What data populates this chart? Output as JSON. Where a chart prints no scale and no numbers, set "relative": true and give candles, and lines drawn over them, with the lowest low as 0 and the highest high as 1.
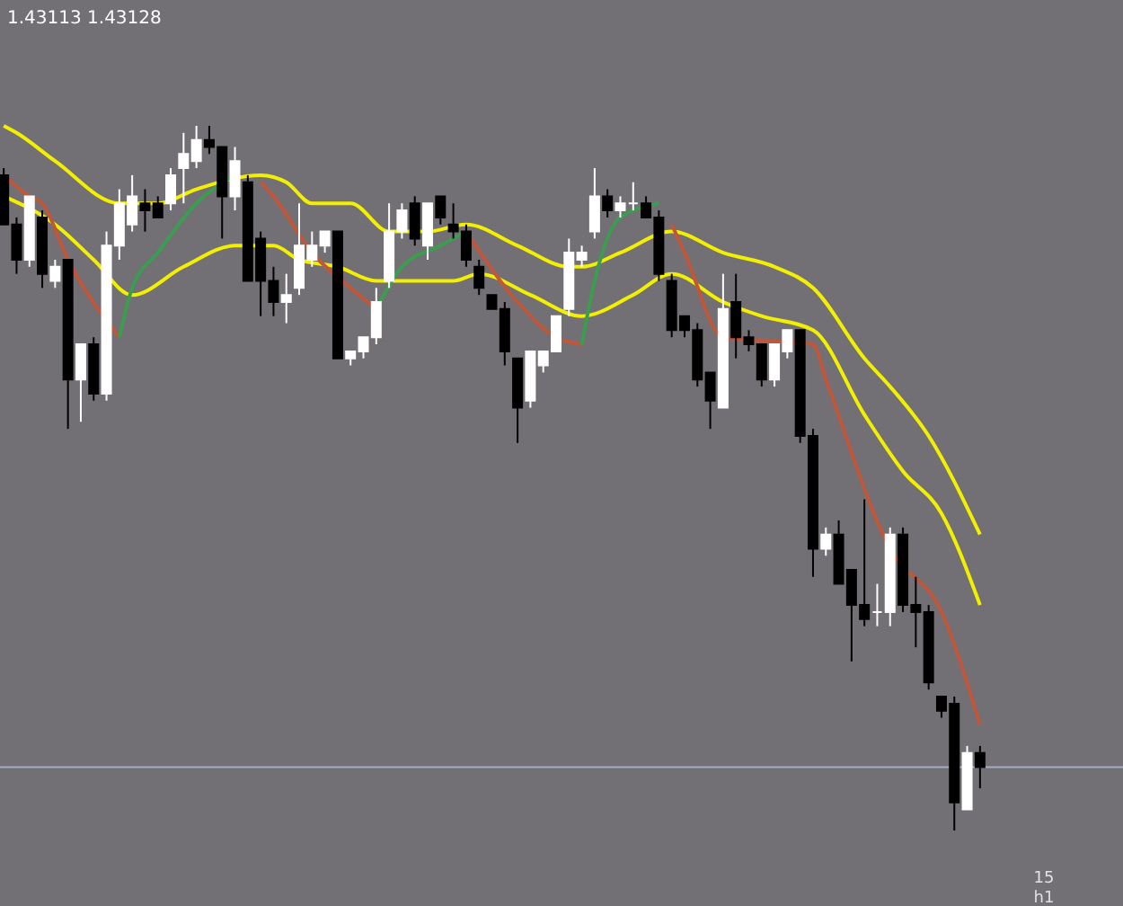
{
  "chart_data": {
    "type": "candlestick",
    "title": "1.43113 1.43128",
    "relative": true,
    "categories": [
      null,
      null,
      null,
      null,
      null,
      null,
      null,
      null,
      null,
      null,
      null,
      null,
      null,
      null,
      null,
      null,
      null,
      null,
      null,
      null,
      null,
      null,
      null,
      null,
      null,
      null,
      null,
      null,
      null,
      null,
      null,
      null,
      null,
      null,
      null,
      null,
      null,
      null,
      null,
      null,
      null,
      null,
      null,
      null,
      null,
      null,
      null,
      null,
      null,
      null,
      null,
      null,
      null,
      null,
      null,
      null,
      null,
      null,
      null,
      null,
      null,
      null,
      null,
      null,
      null,
      null,
      null,
      null,
      null,
      null,
      null,
      null,
      null,
      null,
      null,
      null,
      null
    ],
    "ohlc": [
      [
        0.93,
        0.94,
        0.86,
        0.86
      ],
      [
        0.86,
        0.87,
        0.79,
        0.81
      ],
      [
        0.81,
        0.9,
        0.8,
        0.9
      ],
      [
        0.87,
        0.88,
        0.77,
        0.79
      ],
      [
        0.78,
        0.81,
        0.77,
        0.8
      ],
      [
        0.81,
        0.81,
        0.57,
        0.64
      ],
      [
        0.64,
        0.69,
        0.58,
        0.69
      ],
      [
        0.69,
        0.7,
        0.61,
        0.62
      ],
      [
        0.62,
        0.85,
        0.61,
        0.83
      ],
      [
        0.83,
        0.91,
        0.81,
        0.89
      ],
      [
        0.86,
        0.93,
        0.85,
        0.9
      ],
      [
        0.89,
        0.91,
        0.85,
        0.88
      ],
      [
        0.89,
        0.9,
        0.87,
        0.87
      ],
      [
        0.89,
        0.94,
        0.88,
        0.93
      ],
      [
        0.94,
        0.99,
        0.89,
        0.96
      ],
      [
        0.95,
        1.0,
        0.94,
        0.98
      ],
      [
        0.98,
        1.0,
        0.96,
        0.97
      ],
      [
        0.97,
        0.97,
        0.84,
        0.9
      ],
      [
        0.9,
        0.97,
        0.88,
        0.95
      ],
      [
        0.92,
        0.93,
        0.78,
        0.78
      ],
      [
        0.84,
        0.85,
        0.73,
        0.78
      ],
      [
        0.78,
        0.8,
        0.73,
        0.75
      ],
      [
        0.75,
        0.79,
        0.72,
        0.76
      ],
      [
        0.77,
        0.89,
        0.76,
        0.83
      ],
      [
        0.81,
        0.85,
        0.8,
        0.83
      ],
      [
        0.83,
        0.85,
        0.82,
        0.85
      ],
      [
        0.85,
        0.85,
        0.67,
        0.67
      ],
      [
        0.67,
        0.68,
        0.66,
        0.68
      ],
      [
        0.68,
        0.7,
        0.67,
        0.7
      ],
      [
        0.7,
        0.77,
        0.69,
        0.75
      ],
      [
        0.78,
        0.89,
        0.77,
        0.85
      ],
      [
        0.85,
        0.89,
        0.84,
        0.88
      ],
      [
        0.89,
        0.9,
        0.83,
        0.84
      ],
      [
        0.83,
        0.89,
        0.81,
        0.89
      ],
      [
        0.9,
        0.9,
        0.86,
        0.87
      ],
      [
        0.86,
        0.89,
        0.84,
        0.85
      ],
      [
        0.85,
        0.86,
        0.8,
        0.81
      ],
      [
        0.8,
        0.81,
        0.76,
        0.77
      ],
      [
        0.76,
        0.76,
        0.74,
        0.74
      ],
      [
        0.74,
        0.75,
        0.66,
        0.68
      ],
      [
        0.67,
        0.67,
        0.55,
        0.6
      ],
      [
        0.61,
        0.68,
        0.6,
        0.68
      ],
      [
        0.66,
        0.68,
        0.65,
        0.68
      ],
      [
        0.68,
        0.73,
        0.68,
        0.73
      ],
      [
        0.74,
        0.84,
        0.73,
        0.82
      ],
      [
        0.81,
        0.83,
        0.8,
        0.82
      ],
      [
        0.85,
        0.94,
        0.84,
        0.9
      ],
      [
        0.9,
        0.91,
        0.87,
        0.88
      ],
      [
        0.88,
        0.9,
        0.87,
        0.89
      ],
      [
        0.89,
        0.92,
        0.88,
        0.89
      ],
      [
        0.89,
        0.9,
        0.87,
        0.87
      ],
      [
        0.87,
        0.88,
        0.78,
        0.79
      ],
      [
        0.78,
        0.79,
        0.7,
        0.71
      ],
      [
        0.73,
        0.73,
        0.7,
        0.71
      ],
      [
        0.71,
        0.72,
        0.63,
        0.64
      ],
      [
        0.65,
        0.65,
        0.57,
        0.61
      ],
      [
        0.6,
        0.79,
        0.6,
        0.74
      ],
      [
        0.75,
        0.79,
        0.67,
        0.7
      ],
      [
        0.7,
        0.71,
        0.68,
        0.69
      ],
      [
        0.69,
        0.69,
        0.63,
        0.64
      ],
      [
        0.64,
        0.69,
        0.63,
        0.69
      ],
      [
        0.68,
        0.71,
        0.67,
        0.71
      ],
      [
        0.71,
        0.71,
        0.55,
        0.56
      ],
      [
        0.56,
        0.57,
        0.36,
        0.4
      ],
      [
        0.4,
        0.43,
        0.39,
        0.42
      ],
      [
        0.42,
        0.44,
        0.35,
        0.35
      ],
      [
        0.37,
        0.37,
        0.24,
        0.32
      ],
      [
        0.32,
        0.47,
        0.29,
        0.3
      ],
      [
        0.31,
        0.35,
        0.29,
        0.31
      ],
      [
        0.31,
        0.43,
        0.29,
        0.42
      ],
      [
        0.42,
        0.43,
        0.31,
        0.32
      ],
      [
        0.32,
        0.36,
        0.26,
        0.31
      ],
      [
        0.31,
        0.32,
        0.2,
        0.21
      ],
      [
        0.19,
        0.19,
        0.16,
        0.17
      ],
      [
        0.18,
        0.19,
        0.0,
        0.04
      ],
      [
        0.03,
        0.12,
        0.03,
        0.11
      ],
      [
        0.11,
        0.12,
        0.06,
        0.09
      ]
    ],
    "series": [
      {
        "type": "line",
        "color": "#f2f000",
        "values": [
          1.0,
          0.99,
          null,
          null,
          0.95,
          null,
          null,
          null,
          null,
          0.89,
          null,
          null,
          0.89,
          null,
          null,
          0.91,
          null,
          null,
          null,
          null,
          0.93,
          null,
          0.92,
          null,
          0.89,
          null,
          null,
          0.89,
          null,
          null,
          0.85,
          null,
          null,
          0.85,
          null,
          null,
          0.86,
          null,
          null,
          null,
          0.83,
          null,
          null,
          null,
          0.8,
          0.8,
          null,
          null,
          0.82,
          null,
          null,
          null,
          0.85,
          null,
          null,
          null,
          0.82,
          null,
          null,
          null,
          0.8,
          null,
          null,
          0.77,
          null,
          null,
          null,
          0.67,
          null,
          0.63,
          null,
          null,
          0.56,
          null,
          null,
          null,
          0.42
        ]
      },
      {
        "type": "line",
        "color": "#f2f000",
        "values": [
          0.9,
          null,
          null,
          null,
          0.86,
          null,
          null,
          0.81,
          null,
          null,
          0.76,
          null,
          null,
          null,
          0.8,
          null,
          null,
          null,
          0.83,
          null,
          null,
          0.83,
          null,
          0.81,
          null,
          null,
          0.8,
          null,
          null,
          0.78,
          null,
          null,
          null,
          null,
          null,
          0.78,
          null,
          0.79,
          null,
          null,
          null,
          0.76,
          null,
          null,
          null,
          0.73,
          null,
          null,
          null,
          0.76,
          null,
          null,
          0.79,
          null,
          null,
          null,
          0.75,
          null,
          null,
          0.73,
          null,
          null,
          null,
          0.71,
          null,
          null,
          null,
          0.59,
          null,
          null,
          0.51,
          null,
          null,
          0.45,
          null,
          null,
          0.32
        ]
      },
      {
        "type": "line",
        "color": "#c0563a",
        "values": [
          0.93,
          null,
          0.9,
          0.89,
          null,
          0.81,
          null,
          null,
          null,
          0.7,
          null,
          null,
          null,
          null,
          null,
          null,
          null,
          null,
          null,
          null,
          null,
          null,
          null,
          null,
          null,
          null,
          null,
          null,
          null,
          null,
          null,
          null,
          null,
          null,
          null,
          null,
          null,
          null,
          null,
          null,
          null,
          null,
          null,
          null,
          null,
          null,
          null,
          null,
          null,
          null,
          null,
          null,
          null,
          null,
          null,
          null,
          null,
          null,
          null,
          null,
          null,
          null,
          null,
          null,
          null,
          null,
          null,
          null,
          null,
          null,
          null,
          null,
          null,
          null,
          null,
          null,
          null
        ]
      },
      {
        "type": "line",
        "color": "#3c9c50",
        "values": [
          null,
          null,
          null,
          null,
          null,
          null,
          null,
          null,
          null,
          0.7,
          0.77,
          null,
          0.82,
          null,
          null,
          0.89,
          null,
          null,
          0.93,
          null,
          null,
          null,
          null,
          null,
          null,
          null,
          null,
          null,
          null,
          null,
          null,
          null,
          null,
          null,
          null,
          null,
          null,
          null,
          null,
          null,
          null,
          null,
          null,
          null,
          null,
          null,
          null,
          null,
          null,
          null,
          null,
          null,
          null,
          null,
          null,
          null,
          null,
          null,
          null,
          null,
          null,
          null,
          null,
          null,
          null,
          null,
          null,
          null,
          null,
          null,
          null,
          null,
          null,
          null,
          null,
          null,
          null
        ]
      },
      {
        "type": "line",
        "color": "#c0563a",
        "values": [
          null,
          null,
          null,
          null,
          null,
          null,
          null,
          null,
          null,
          null,
          null,
          null,
          null,
          null,
          null,
          null,
          null,
          null,
          null,
          null,
          0.92,
          0.9,
          null,
          null,
          0.82,
          null,
          null,
          0.77,
          null,
          0.74,
          null,
          null,
          null,
          null,
          null,
          null,
          null,
          null,
          null,
          null,
          null,
          null,
          null,
          null,
          null,
          null,
          null,
          null,
          null,
          null,
          null,
          null,
          null,
          null,
          null,
          null,
          null,
          null,
          null,
          null,
          null,
          null,
          null,
          null,
          null,
          null,
          null,
          null,
          null,
          null,
          null,
          null,
          null,
          null,
          null,
          null,
          null
        ]
      },
      {
        "type": "line",
        "color": "#3c9c50",
        "values": [
          null,
          null,
          null,
          null,
          null,
          null,
          null,
          null,
          null,
          null,
          null,
          null,
          null,
          null,
          null,
          null,
          null,
          null,
          null,
          null,
          null,
          null,
          null,
          null,
          null,
          null,
          null,
          null,
          null,
          0.74,
          null,
          0.8,
          null,
          null,
          0.83,
          null,
          0.85,
          null,
          null,
          null,
          null,
          null,
          null,
          null,
          null,
          null,
          null,
          null,
          null,
          null,
          null,
          null,
          null,
          null,
          null,
          null,
          null,
          null,
          null,
          null,
          null,
          null,
          null,
          null,
          null,
          null,
          null,
          null,
          null,
          null,
          null,
          null,
          null,
          null,
          null,
          null,
          null
        ]
      },
      {
        "type": "line",
        "color": "#c0563a",
        "values": [
          null,
          null,
          null,
          null,
          null,
          null,
          null,
          null,
          null,
          null,
          null,
          null,
          null,
          null,
          null,
          null,
          null,
          null,
          null,
          null,
          null,
          null,
          null,
          null,
          null,
          null,
          null,
          null,
          null,
          null,
          null,
          null,
          null,
          null,
          null,
          null,
          0.85,
          null,
          null,
          null,
          0.75,
          null,
          null,
          0.7,
          null,
          0.69,
          null,
          null,
          null,
          null,
          null,
          null,
          null,
          null,
          null,
          null,
          null,
          null,
          null,
          null,
          null,
          null,
          null,
          null,
          null,
          null,
          null,
          null,
          null,
          null,
          null,
          null,
          null,
          null,
          null,
          null,
          null
        ]
      },
      {
        "type": "line",
        "color": "#3c9c50",
        "values": [
          null,
          null,
          null,
          null,
          null,
          null,
          null,
          null,
          null,
          null,
          null,
          null,
          null,
          null,
          null,
          null,
          null,
          null,
          null,
          null,
          null,
          null,
          null,
          null,
          null,
          null,
          null,
          null,
          null,
          null,
          null,
          null,
          null,
          null,
          null,
          null,
          null,
          null,
          null,
          null,
          null,
          null,
          null,
          null,
          null,
          0.69,
          0.78,
          null,
          0.87,
          null,
          null,
          0.89,
          null,
          null,
          null,
          null,
          null,
          null,
          null,
          null,
          null,
          null,
          null,
          null,
          null,
          null,
          null,
          null,
          null,
          null,
          null,
          null,
          null,
          null,
          null,
          null,
          null
        ]
      },
      {
        "type": "line",
        "color": "#c0563a",
        "values": [
          null,
          null,
          null,
          null,
          null,
          null,
          null,
          null,
          null,
          null,
          null,
          null,
          null,
          null,
          null,
          null,
          null,
          null,
          null,
          null,
          null,
          null,
          null,
          null,
          null,
          null,
          null,
          null,
          null,
          null,
          null,
          null,
          null,
          null,
          null,
          null,
          null,
          null,
          null,
          null,
          null,
          null,
          null,
          null,
          null,
          null,
          null,
          null,
          null,
          null,
          null,
          null,
          0.86,
          0.82,
          null,
          null,
          0.7,
          null,
          null,
          null,
          null,
          null,
          null,
          0.69,
          0.64,
          null,
          null,
          null,
          null,
          0.4,
          null,
          null,
          null,
          0.31,
          null,
          null,
          0.15
        ]
      }
    ],
    "ref_lines": [
      {
        "axis": "y",
        "value": 0.09,
        "color": "#a6acc4"
      }
    ],
    "annotations": [
      "15",
      "h1"
    ]
  }
}
